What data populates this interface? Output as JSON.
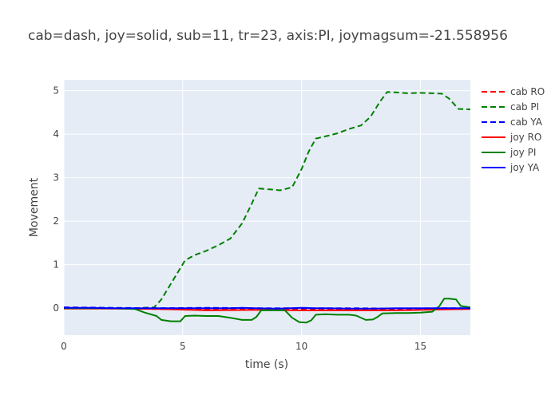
{
  "chart_data": {
    "type": "line",
    "title": "cab=dash, joy=solid, sub=11, tr=23, axis:PI, joymagsum=-21.558956",
    "xlabel": "time (s)",
    "ylabel": "Movement",
    "xlim": [
      0,
      17.1
    ],
    "ylim": [
      -0.62,
      5.25
    ],
    "xticks": [
      0,
      5,
      10,
      15
    ],
    "yticks": [
      0,
      1,
      2,
      3,
      4,
      5
    ],
    "grid": true,
    "legend_position": "top-right",
    "series": [
      {
        "name": "cab RO",
        "color": "#ff0000",
        "dash": true,
        "x": [
          0,
          2,
          4,
          6,
          8,
          10,
          12,
          14,
          16,
          17.1
        ],
        "y": [
          0.01,
          0.0,
          -0.02,
          -0.03,
          -0.03,
          -0.02,
          -0.02,
          -0.02,
          -0.02,
          -0.01
        ]
      },
      {
        "name": "cab PI",
        "color": "#008000",
        "dash": true,
        "x": [
          0,
          1,
          2,
          3,
          3.8,
          4.1,
          4.6,
          5.1,
          5.5,
          6.0,
          6.5,
          7.0,
          7.5,
          7.9,
          8.2,
          8.7,
          9.1,
          9.6,
          10.0,
          10.3,
          10.6,
          11.0,
          11.5,
          12.0,
          12.5,
          12.9,
          13.3,
          13.6,
          14.0,
          14.5,
          15.0,
          15.5,
          15.9,
          16.2,
          16.6,
          17.1
        ],
        "y": [
          0.0,
          0.0,
          0.0,
          0.0,
          0.02,
          0.2,
          0.65,
          1.1,
          1.22,
          1.32,
          1.45,
          1.6,
          1.95,
          2.4,
          2.75,
          2.73,
          2.71,
          2.78,
          3.2,
          3.6,
          3.9,
          3.95,
          4.02,
          4.12,
          4.2,
          4.4,
          4.75,
          4.97,
          4.96,
          4.94,
          4.95,
          4.94,
          4.93,
          4.82,
          4.58,
          4.57
        ]
      },
      {
        "name": "cab YA",
        "color": "#0000ff",
        "dash": true,
        "x": [
          0,
          2,
          4,
          6,
          8,
          10,
          12,
          14,
          16,
          17.1
        ],
        "y": [
          0.02,
          0.01,
          0.0,
          0.01,
          0.0,
          0.0,
          0.0,
          -0.01,
          0.0,
          0.0
        ]
      },
      {
        "name": "joy RO",
        "color": "#ff0000",
        "dash": false,
        "x": [
          0,
          2,
          4,
          6,
          8,
          10,
          12,
          14,
          16,
          17.1
        ],
        "y": [
          -0.01,
          -0.01,
          -0.02,
          -0.05,
          -0.04,
          -0.05,
          -0.05,
          -0.05,
          -0.03,
          -0.02
        ]
      },
      {
        "name": "joy PI",
        "color": "#008000",
        "dash": false,
        "x": [
          0,
          1,
          2,
          3,
          3.4,
          3.9,
          4.1,
          4.5,
          4.9,
          5.1,
          5.5,
          6.0,
          6.5,
          7.0,
          7.5,
          7.9,
          8.1,
          8.3,
          8.8,
          9.3,
          9.6,
          9.9,
          10.2,
          10.4,
          10.6,
          11.0,
          11.5,
          12.0,
          12.3,
          12.7,
          13.0,
          13.2,
          13.4,
          14.0,
          14.5,
          15.0,
          15.5,
          15.8,
          16.0,
          16.2,
          16.5,
          16.7,
          17.1
        ],
        "y": [
          0.0,
          0.0,
          0.0,
          -0.02,
          -0.1,
          -0.18,
          -0.27,
          -0.3,
          -0.3,
          -0.18,
          -0.17,
          -0.18,
          -0.18,
          -0.22,
          -0.27,
          -0.27,
          -0.2,
          -0.05,
          -0.05,
          -0.05,
          -0.22,
          -0.32,
          -0.33,
          -0.28,
          -0.15,
          -0.14,
          -0.15,
          -0.15,
          -0.17,
          -0.27,
          -0.26,
          -0.2,
          -0.12,
          -0.11,
          -0.11,
          -0.1,
          -0.08,
          0.05,
          0.22,
          0.22,
          0.2,
          0.05,
          0.02
        ]
      },
      {
        "name": "joy YA",
        "color": "#0000ff",
        "dash": false,
        "x": [
          0,
          1,
          2,
          3,
          4,
          5,
          6,
          7,
          7.5,
          8,
          9,
          10,
          10.5,
          11,
          12,
          13,
          14,
          15,
          16,
          17.1
        ],
        "y": [
          0.01,
          0.01,
          0.0,
          0.0,
          0.0,
          0.0,
          0.0,
          0.0,
          0.01,
          0.0,
          -0.01,
          0.01,
          0.0,
          0.0,
          -0.01,
          -0.01,
          0.0,
          0.0,
          0.0,
          0.0
        ]
      }
    ]
  }
}
